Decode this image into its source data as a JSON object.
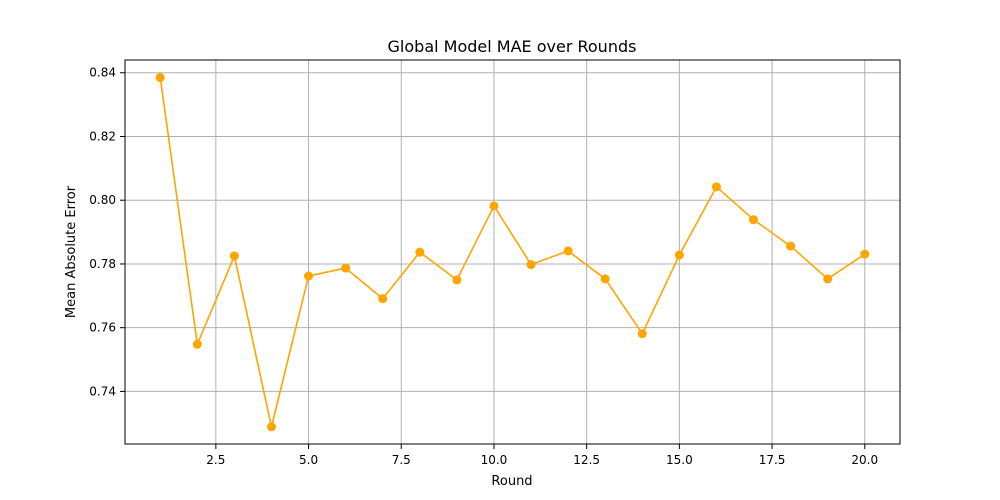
{
  "chart_data": {
    "type": "line",
    "title": "Global Model MAE over Rounds",
    "xlabel": "Round",
    "ylabel": "Mean Absolute Error",
    "xlim": [
      0.05,
      20.95
    ],
    "ylim": [
      0.7235,
      0.844
    ],
    "xticks": [
      2.5,
      5.0,
      7.5,
      10.0,
      12.5,
      15.0,
      17.5,
      20.0
    ],
    "xtick_labels": [
      "2.5",
      "5.0",
      "7.5",
      "10.0",
      "12.5",
      "15.0",
      "17.5",
      "20.0"
    ],
    "yticks": [
      0.74,
      0.76,
      0.78,
      0.8,
      0.82,
      0.84
    ],
    "ytick_labels": [
      "0.74",
      "0.76",
      "0.78",
      "0.80",
      "0.82",
      "0.84"
    ],
    "grid": true,
    "series": [
      {
        "color": "#ffa500",
        "marker": "circle",
        "x": [
          1,
          2,
          3,
          4,
          5,
          6,
          7,
          8,
          9,
          10,
          11,
          12,
          13,
          14,
          15,
          16,
          17,
          18,
          19,
          20
        ],
        "y": [
          0.8385,
          0.7548,
          0.7825,
          0.7289,
          0.7762,
          0.7787,
          0.7691,
          0.7837,
          0.775,
          0.7982,
          0.7798,
          0.7841,
          0.7753,
          0.7581,
          0.7828,
          0.8042,
          0.7939,
          0.7856,
          0.7753,
          0.7831
        ]
      }
    ]
  }
}
